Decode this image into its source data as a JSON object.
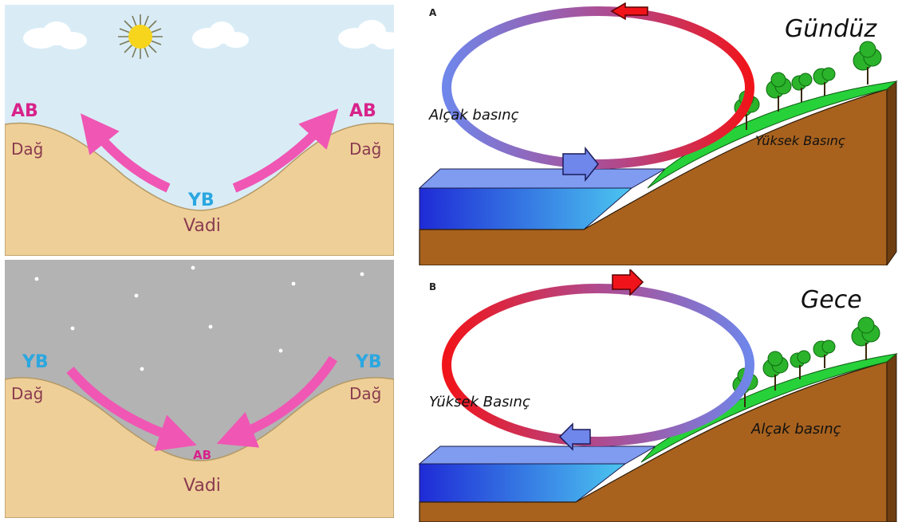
{
  "colors": {
    "sky_day": "#d9ecf6",
    "sky_night": "#b3b3b3",
    "ground_valley": "#efcf98",
    "arrow_pink": "#f056b4",
    "label_magenta": "#d8238a",
    "label_cyan": "#2ba7e0",
    "label_brown": "#8a3b4f",
    "soil": "#a8621e",
    "grass": "#27d13a",
    "water": "#3a4de6",
    "loop_red": "#f0141a",
    "loop_blue": "#7b8fe8"
  },
  "valley_day": {
    "left_ab": "AB",
    "right_ab": "AB",
    "left_mountain": "Dağ",
    "right_mountain": "Dağ",
    "valley_yb": "YB",
    "valley": "Vadi",
    "sun_icon": "sun-icon",
    "cloud_icon": "cloud-icon"
  },
  "valley_night": {
    "left_yb": "YB",
    "right_yb": "YB",
    "left_mountain": "Dağ",
    "right_mountain": "Dağ",
    "valley_ab": "AB",
    "valley": "Vadi",
    "star_icon": "star-icon"
  },
  "slope_day": {
    "letter": "A",
    "title": "Gündüz",
    "low_pressure": "Alçak basınç",
    "high_pressure": "Yüksek Basınç",
    "tree_icon": "tree-icon"
  },
  "slope_night": {
    "letter": "B",
    "title": "Gece",
    "high_pressure": "Yüksek Basınç",
    "low_pressure": "Alçak basınç",
    "tree_icon": "tree-icon"
  }
}
